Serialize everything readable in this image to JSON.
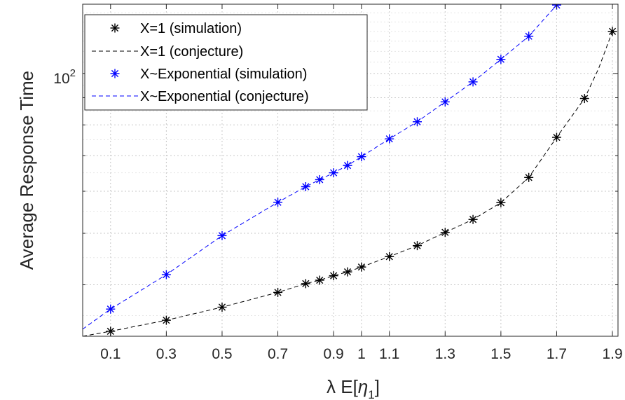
{
  "chart_data": {
    "type": "line",
    "xlabel_lambda": "λ",
    "xlabel_E": "E[",
    "xlabel_eta": "η",
    "xlabel_sub": "1",
    "xlabel_close": "]",
    "ylabel": "Average Response Time",
    "xlim": [
      0.0,
      1.92
    ],
    "ylim": [
      32,
      135
    ],
    "yscale": "log",
    "grid": true,
    "legend_position": "top-left",
    "x_ticks": [
      0.1,
      0.3,
      0.5,
      0.7,
      0.9,
      1.0,
      1.1,
      1.3,
      1.5,
      1.7,
      1.9
    ],
    "x_tick_labels": [
      "0.1",
      "0.3",
      "0.5",
      "0.7",
      "0.9",
      "1",
      "1.1",
      "1.3",
      "1.5",
      "1.7",
      "1.9"
    ],
    "y_major_tick": {
      "value": 100,
      "base": "10",
      "exp": "2"
    },
    "y_minor_ticks": [
      40,
      50,
      60,
      70,
      80,
      90
    ],
    "series": [
      {
        "name": "X=1 (simulation)",
        "style": "marker",
        "color": "#000000",
        "x": [
          0.1,
          0.3,
          0.5,
          0.7,
          0.8,
          0.85,
          0.9,
          0.95,
          1.0,
          1.1,
          1.2,
          1.3,
          1.4,
          1.5,
          1.6,
          1.7,
          1.8,
          1.9
        ],
        "y": [
          32.7,
          34.3,
          36.3,
          38.7,
          40.2,
          40.8,
          41.6,
          42.3,
          43.2,
          45.2,
          47.4,
          50.2,
          53.1,
          57.1,
          63.7,
          75.8,
          89.7,
          120.0
        ]
      },
      {
        "name": "X=1 (conjecture)",
        "style": "dashed",
        "color": "#000000",
        "x": [
          0.0,
          0.1,
          0.3,
          0.5,
          0.7,
          0.8,
          0.85,
          0.9,
          0.95,
          1.0,
          1.1,
          1.2,
          1.3,
          1.4,
          1.5,
          1.6,
          1.7,
          1.8,
          1.85,
          1.9
        ],
        "y": [
          32.0,
          32.7,
          34.3,
          36.3,
          38.7,
          40.2,
          40.8,
          41.6,
          42.3,
          43.2,
          45.2,
          47.4,
          50.2,
          53.1,
          57.1,
          63.7,
          75.8,
          89.7,
          102.0,
          120.0
        ]
      },
      {
        "name": "X~Exponential (simulation)",
        "style": "marker",
        "color": "#0000ff",
        "x": [
          0.1,
          0.3,
          0.5,
          0.7,
          0.8,
          0.85,
          0.9,
          0.95,
          1.0,
          1.1,
          1.2,
          1.3,
          1.4,
          1.5,
          1.6,
          1.7
        ],
        "y": [
          36.0,
          41.8,
          49.5,
          57.2,
          61.2,
          63.1,
          65.0,
          67.1,
          69.7,
          75.3,
          81.1,
          88.4,
          96.4,
          106.3,
          117.5,
          134.5
        ]
      },
      {
        "name": "X~Exponential (conjecture)",
        "style": "dashed",
        "color": "#0000ff",
        "x": [
          0.0,
          0.1,
          0.3,
          0.5,
          0.7,
          0.8,
          0.85,
          0.9,
          0.95,
          1.0,
          1.1,
          1.2,
          1.3,
          1.4,
          1.5,
          1.6,
          1.7
        ],
        "y": [
          33.0,
          36.0,
          41.8,
          49.5,
          57.2,
          61.2,
          63.1,
          65.0,
          67.1,
          69.7,
          75.3,
          81.1,
          88.4,
          96.4,
          106.3,
          117.5,
          134.5
        ]
      }
    ]
  }
}
